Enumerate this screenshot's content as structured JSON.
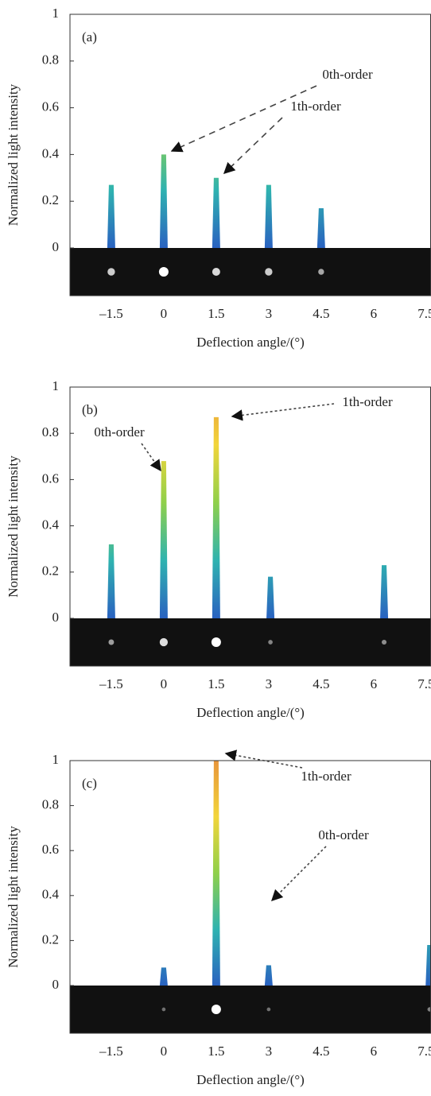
{
  "chart_data": [
    {
      "type": "bar",
      "panel_label": "(a)",
      "xlabel": "Deflection angle/(°)",
      "ylabel": "Normalized light intensity",
      "x": [
        -1.5,
        0,
        1.5,
        3,
        4.5
      ],
      "values": [
        0.27,
        0.4,
        0.3,
        0.27,
        0.17
      ],
      "colors": [
        "#2a62c0",
        "#2fb3b0",
        "#8fd04a",
        "#f2d53a",
        "#e8953a"
      ],
      "xlim": [
        -2.68,
        7.64
      ],
      "ylim": [
        0,
        1
      ],
      "xticks": [
        {
          "value": -1.5,
          "label": "–1.5"
        },
        0,
        1.5,
        3,
        4.5,
        6,
        7.5
      ],
      "yticks": [
        0,
        0.2,
        0.4,
        0.6,
        0.8,
        1
      ],
      "annotations": [
        "0th-order",
        "1th-order"
      ]
    },
    {
      "type": "bar",
      "panel_label": "(b)",
      "xlabel": "Deflection angle/(°)",
      "ylabel": "Normalized light intensity",
      "x": [
        -1.5,
        0,
        1.5,
        3.05,
        6.3
      ],
      "values": [
        0.32,
        0.68,
        0.87,
        0.18,
        0.23
      ],
      "colors": [
        "#2a62c0",
        "#2fb3b0",
        "#8fd04a",
        "#f2d53a",
        "#e8953a"
      ],
      "xlim": [
        -2.68,
        7.64
      ],
      "ylim": [
        0,
        1
      ],
      "xticks": [
        {
          "value": -1.5,
          "label": "–1.5"
        },
        0,
        1.5,
        3,
        4.5,
        6,
        7.5
      ],
      "yticks": [
        0,
        0.2,
        0.4,
        0.6,
        0.8,
        1
      ],
      "annotations": [
        "1th-order",
        "0th-order"
      ]
    },
    {
      "type": "bar",
      "panel_label": "(c)",
      "xlabel": "Deflection angle/(°)",
      "ylabel": "Normalized light intensity",
      "x": [
        0,
        1.5,
        3,
        7.6
      ],
      "values": [
        0.08,
        1,
        0.09,
        0.18
      ],
      "colors": [
        "#2a62c0",
        "#2fb3b0",
        "#8fd04a",
        "#f2d53a",
        "#e8953a"
      ],
      "xlim": [
        -2.68,
        7.64
      ],
      "ylim": [
        0,
        1
      ],
      "xticks": [
        {
          "value": -1.5,
          "label": "–1.5"
        },
        0,
        1.5,
        3,
        4.5,
        6,
        7.5
      ],
      "yticks": [
        0,
        0.2,
        0.4,
        0.6,
        0.8,
        1
      ],
      "annotations": [
        "1th-order",
        "0th-order"
      ]
    }
  ]
}
